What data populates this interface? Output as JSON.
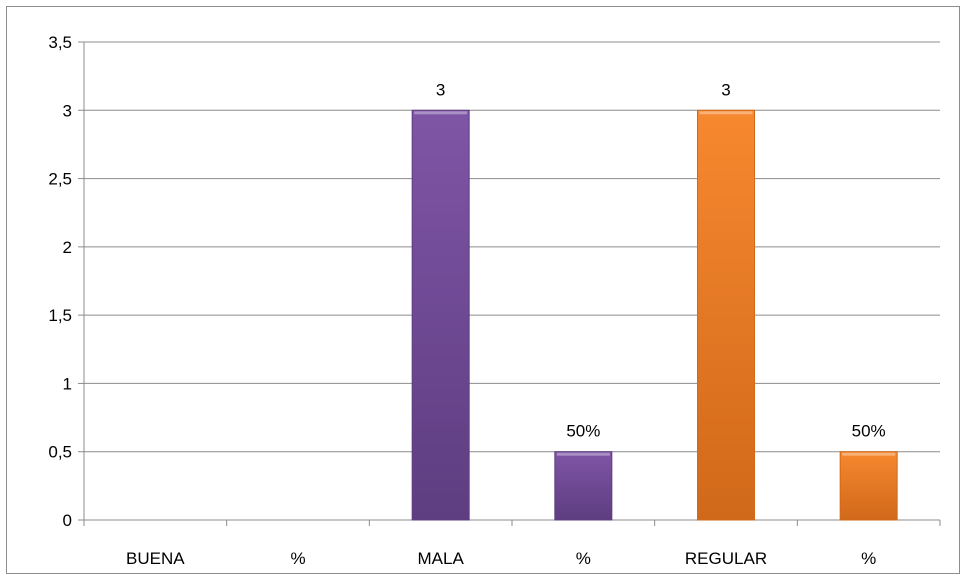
{
  "chart_data": {
    "type": "bar",
    "title": "",
    "xlabel": "",
    "ylabel": "",
    "ylim": [
      0,
      3.5
    ],
    "yticks": [
      0,
      0.5,
      1,
      1.5,
      2,
      2.5,
      3,
      3.5
    ],
    "ytick_labels": [
      "0",
      "0,5",
      "1",
      "1,5",
      "2",
      "2,5",
      "3",
      "3,5"
    ],
    "grid": true,
    "legend": "none",
    "categories": [
      "BUENA",
      "%",
      "MALA",
      "%",
      "REGULAR",
      "%"
    ],
    "values": [
      0,
      0,
      3,
      0.5,
      3,
      0.5
    ],
    "data_labels": [
      "",
      "",
      "3",
      "50%",
      "3",
      "50%"
    ],
    "colors": [
      "#7f55a6",
      "#7f55a6",
      "#7f55a6",
      "#7f55a6",
      "#f7882f",
      "#f7882f"
    ],
    "color_dark": [
      "#5e3d80",
      "#5e3d80",
      "#5e3d80",
      "#5e3d80",
      "#d0691a",
      "#d0691a"
    ]
  }
}
